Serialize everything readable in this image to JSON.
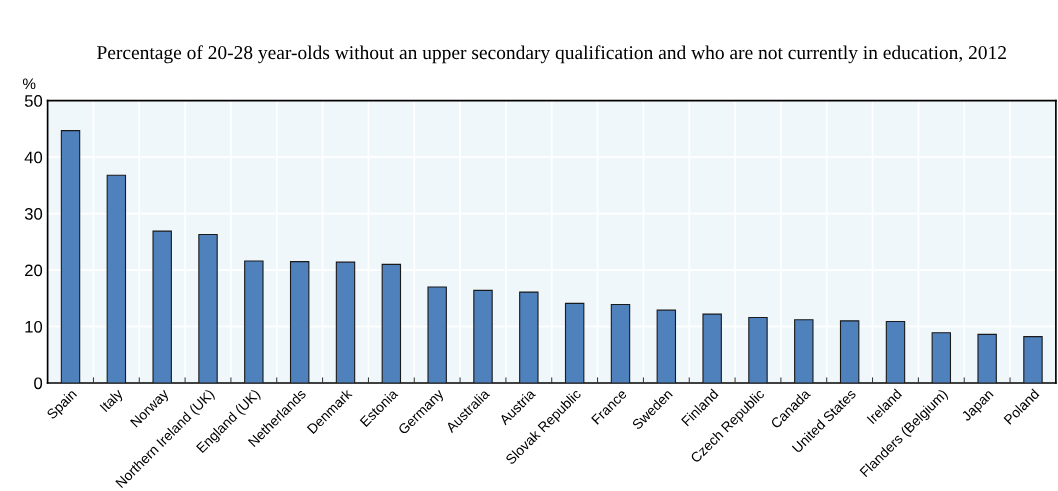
{
  "chart_data": {
    "type": "bar",
    "title": "Percentage of 20-28 year-olds without an upper secondary qualification and who are not currently in education, 2012",
    "ylabel": "%",
    "categories": [
      "Spain",
      "Italy",
      "Norway",
      "Northern Ireland (UK)",
      "England (UK)",
      "Netherlands",
      "Denmark",
      "Estonia",
      "Germany",
      "Australia",
      "Austria",
      "Slovak Republic",
      "France",
      "Sweden",
      "Finland",
      "Czech Republic",
      "Canada",
      "United States",
      "Ireland",
      "Flanders (Belgium)",
      "Japan",
      "Poland"
    ],
    "values": [
      44.7,
      36.8,
      26.9,
      26.3,
      21.6,
      21.5,
      21.4,
      21.0,
      17.0,
      16.4,
      16.1,
      14.1,
      13.9,
      12.9,
      12.2,
      11.6,
      11.2,
      11.0,
      10.9,
      8.9,
      8.6,
      8.2
    ],
    "color": "#4f81bd",
    "ylim": [
      0,
      50
    ],
    "yticks": [
      0,
      10,
      20,
      30,
      40,
      50
    ],
    "grid": true
  }
}
